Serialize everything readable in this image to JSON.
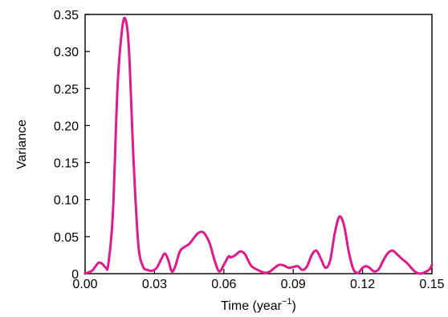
{
  "chart_data": {
    "type": "line",
    "title": "",
    "xlabel": "Time (year",
    "xlabel_superscript": "−1",
    "xlabel_suffix": ")",
    "ylabel": "Variance",
    "xlim": [
      0,
      0.15
    ],
    "ylim": [
      0,
      0.35
    ],
    "x_ticks": [
      0,
      0.03,
      0.06,
      0.09,
      0.12,
      0.15
    ],
    "x_tick_labels": [
      "0.00",
      "0.03",
      "0.06",
      "0.09",
      "0.12",
      "0.15"
    ],
    "y_ticks": [
      0,
      0.05,
      0.1,
      0.15,
      0.2,
      0.25,
      0.3,
      0.35
    ],
    "y_tick_labels": [
      "0",
      "0.05",
      "0.10",
      "0.15",
      "0.20",
      "0.25",
      "0.30",
      "0.35"
    ],
    "grid": false,
    "series": [
      {
        "color": "#e0198c",
        "x": [
          0.0,
          0.003,
          0.005,
          0.006,
          0.0075,
          0.009,
          0.01,
          0.012,
          0.014,
          0.016,
          0.0175,
          0.019,
          0.021,
          0.023,
          0.025,
          0.027,
          0.029,
          0.031,
          0.033,
          0.0345,
          0.036,
          0.0375,
          0.039,
          0.041,
          0.043,
          0.045,
          0.047,
          0.049,
          0.051,
          0.0525,
          0.054,
          0.056,
          0.058,
          0.06,
          0.062,
          0.063,
          0.065,
          0.067,
          0.069,
          0.0705,
          0.072,
          0.074,
          0.076,
          0.078,
          0.08,
          0.082,
          0.084,
          0.086,
          0.088,
          0.09,
          0.092,
          0.094,
          0.096,
          0.098,
          0.1,
          0.102,
          0.104,
          0.106,
          0.108,
          0.11,
          0.112,
          0.114,
          0.116,
          0.118,
          0.12,
          0.1215,
          0.123,
          0.125,
          0.127,
          0.129,
          0.131,
          0.133,
          0.135,
          0.137,
          0.139,
          0.141,
          0.143,
          0.145,
          0.147,
          0.149,
          0.15
        ],
        "values": [
          0.0,
          0.004,
          0.012,
          0.015,
          0.013,
          0.008,
          0.012,
          0.08,
          0.25,
          0.33,
          0.343,
          0.3,
          0.15,
          0.04,
          0.01,
          0.005,
          0.004,
          0.008,
          0.02,
          0.027,
          0.018,
          0.003,
          0.01,
          0.03,
          0.036,
          0.04,
          0.048,
          0.055,
          0.056,
          0.05,
          0.04,
          0.018,
          0.003,
          0.012,
          0.023,
          0.022,
          0.025,
          0.03,
          0.027,
          0.018,
          0.01,
          0.006,
          0.003,
          0.001,
          0.003,
          0.008,
          0.012,
          0.011,
          0.008,
          0.009,
          0.01,
          0.005,
          0.01,
          0.025,
          0.031,
          0.02,
          0.008,
          0.018,
          0.055,
          0.077,
          0.065,
          0.03,
          0.006,
          0.001,
          0.008,
          0.01,
          0.008,
          0.003,
          0.006,
          0.018,
          0.028,
          0.031,
          0.026,
          0.02,
          0.015,
          0.008,
          0.002,
          0.0,
          0.002,
          0.006,
          0.012
        ]
      }
    ]
  }
}
